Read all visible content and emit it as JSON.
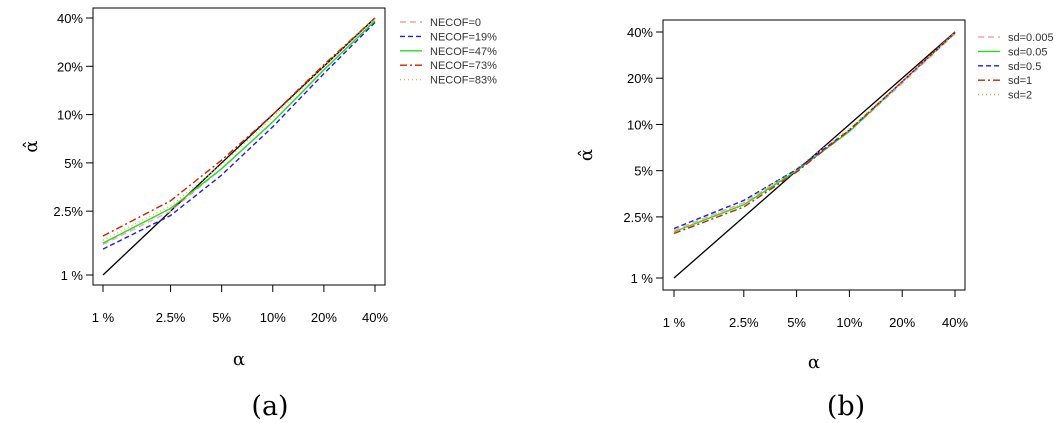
{
  "chart_data": [
    {
      "type": "line",
      "caption": "(a)",
      "xlabel": "α",
      "ylabel": "α̂",
      "x_scale": "log",
      "y_scale": "log",
      "xlim": [
        0.01,
        0.4
      ],
      "ylim": [
        0.01,
        0.4
      ],
      "x_ticks": [
        0.01,
        0.025,
        0.05,
        0.1,
        0.2,
        0.4
      ],
      "x_tick_labels": [
        "1 %",
        "2.5%",
        "5%",
        "10%",
        "20%",
        "40%"
      ],
      "y_ticks": [
        0.01,
        0.025,
        0.05,
        0.1,
        0.2,
        0.4
      ],
      "y_tick_labels": [
        "1 %",
        "2.5%",
        "5%",
        "10%",
        "20%",
        "40%"
      ],
      "grid": false,
      "legend_position": "right",
      "reference_line": {
        "x": [
          0.01,
          0.4
        ],
        "y": [
          0.01,
          0.4
        ],
        "color": "#000000"
      },
      "x": [
        0.01,
        0.025,
        0.05,
        0.1,
        0.2,
        0.4
      ],
      "series": [
        {
          "name": "NECOF=0",
          "values": [
            0.0155,
            0.025,
            0.046,
            0.09,
            0.19,
            0.38
          ],
          "color": "#f4a6a6",
          "dash": "6,4"
        },
        {
          "name": "NECOF=19%",
          "values": [
            0.0145,
            0.0235,
            0.042,
            0.084,
            0.18,
            0.375
          ],
          "color": "#1a1aff",
          "dash": "5,3"
        },
        {
          "name": "NECOF=47%",
          "values": [
            0.0158,
            0.026,
            0.046,
            0.09,
            0.19,
            0.385
          ],
          "color": "#22dd22",
          "dash": ""
        },
        {
          "name": "NECOF=73%",
          "values": [
            0.0175,
            0.029,
            0.052,
            0.1,
            0.205,
            0.4
          ],
          "color": "#cc2200",
          "dash": "7,3,2,3"
        },
        {
          "name": "NECOF=83%",
          "values": [
            0.0165,
            0.027,
            0.049,
            0.096,
            0.2,
            0.395
          ],
          "color": "#ffaa44",
          "dash": "1,3"
        }
      ]
    },
    {
      "type": "line",
      "caption": "(b)",
      "xlabel": "α",
      "ylabel": "α̂",
      "x_scale": "log",
      "y_scale": "log",
      "xlim": [
        0.01,
        0.4
      ],
      "ylim": [
        0.01,
        0.4
      ],
      "x_ticks": [
        0.01,
        0.025,
        0.05,
        0.1,
        0.2,
        0.4
      ],
      "x_tick_labels": [
        "1 %",
        "2.5%",
        "5%",
        "10%",
        "20%",
        "40%"
      ],
      "y_ticks": [
        0.01,
        0.025,
        0.05,
        0.1,
        0.2,
        0.4
      ],
      "y_tick_labels": [
        "1 %",
        "2.5%",
        "5%",
        "10%",
        "20%",
        "40%"
      ],
      "grid": false,
      "legend_position": "right",
      "reference_line": {
        "x": [
          0.01,
          0.4
        ],
        "y": [
          0.01,
          0.4
        ],
        "color": "#000000"
      },
      "x": [
        0.01,
        0.025,
        0.05,
        0.1,
        0.2,
        0.4
      ],
      "series": [
        {
          "name": "sd=0.005",
          "values": [
            0.0205,
            0.031,
            0.05,
            0.09,
            0.185,
            0.39
          ],
          "color": "#f4a6a6",
          "dash": "6,4"
        },
        {
          "name": "sd=0.05",
          "values": [
            0.02,
            0.03,
            0.05,
            0.09,
            0.19,
            0.395
          ],
          "color": "#22dd22",
          "dash": ""
        },
        {
          "name": "sd=0.5",
          "values": [
            0.021,
            0.032,
            0.051,
            0.092,
            0.19,
            0.395
          ],
          "color": "#1a1aff",
          "dash": "5,3"
        },
        {
          "name": "sd=1",
          "values": [
            0.0195,
            0.029,
            0.049,
            0.092,
            0.19,
            0.4
          ],
          "color": "#cc2200",
          "dash": "7,3,2,3"
        },
        {
          "name": "sd=2",
          "values": [
            0.02,
            0.031,
            0.052,
            0.094,
            0.19,
            0.395
          ],
          "color": "#ffaa44",
          "dash": "1,3"
        }
      ]
    }
  ]
}
